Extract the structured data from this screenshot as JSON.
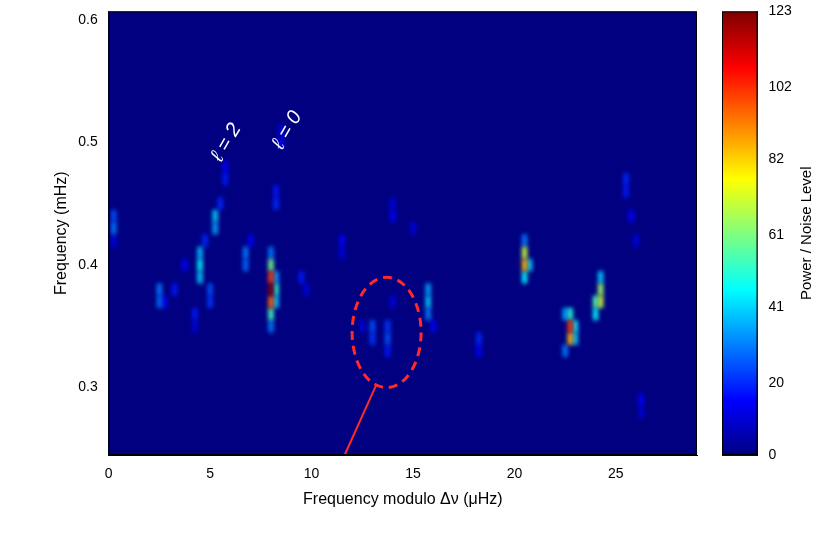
{
  "chart_data": {
    "type": "heatmap",
    "x_label": "Frequency modulo Δν (μHz)",
    "y_label": "Frequency (mHz)",
    "xlim": [
      0,
      29
    ],
    "xticks": [
      0,
      5,
      10,
      15,
      20,
      25
    ],
    "ylim": [
      0.245,
      0.607
    ],
    "yticks": [
      0.3,
      0.4,
      0.5,
      0.6
    ],
    "grid": false,
    "cells": [
      [
        0.25,
        0.42,
        12
      ],
      [
        0.25,
        0.43,
        30
      ],
      [
        0.25,
        0.44,
        25
      ],
      [
        2.5,
        0.37,
        28
      ],
      [
        2.5,
        0.38,
        30
      ],
      [
        2.75,
        0.37,
        15
      ],
      [
        3.25,
        0.38,
        18
      ],
      [
        3.75,
        0.4,
        15
      ],
      [
        4.25,
        0.35,
        12
      ],
      [
        4.25,
        0.36,
        18
      ],
      [
        4.5,
        0.39,
        40
      ],
      [
        4.5,
        0.4,
        45
      ],
      [
        4.5,
        0.41,
        38
      ],
      [
        4.75,
        0.42,
        20
      ],
      [
        5.0,
        0.37,
        22
      ],
      [
        5.0,
        0.38,
        25
      ],
      [
        5.25,
        0.43,
        35
      ],
      [
        5.25,
        0.44,
        40
      ],
      [
        5.5,
        0.45,
        20
      ],
      [
        5.75,
        0.47,
        18
      ],
      [
        5.75,
        0.48,
        15
      ],
      [
        6.75,
        0.4,
        28
      ],
      [
        6.75,
        0.41,
        30
      ],
      [
        7.0,
        0.42,
        15
      ],
      [
        8.0,
        0.35,
        30
      ],
      [
        8.0,
        0.36,
        55
      ],
      [
        8.0,
        0.37,
        95
      ],
      [
        8.0,
        0.38,
        123
      ],
      [
        8.0,
        0.39,
        100
      ],
      [
        8.0,
        0.4,
        60
      ],
      [
        8.0,
        0.41,
        30
      ],
      [
        8.25,
        0.37,
        40
      ],
      [
        8.25,
        0.38,
        50
      ],
      [
        8.25,
        0.39,
        35
      ],
      [
        8.25,
        0.45,
        20
      ],
      [
        8.25,
        0.46,
        18
      ],
      [
        8.5,
        0.5,
        15
      ],
      [
        8.5,
        0.51,
        12
      ],
      [
        9.5,
        0.39,
        18
      ],
      [
        9.75,
        0.38,
        12
      ],
      [
        11.5,
        0.41,
        12
      ],
      [
        11.5,
        0.42,
        15
      ],
      [
        12.5,
        0.35,
        12
      ],
      [
        13.0,
        0.34,
        22
      ],
      [
        13.0,
        0.35,
        25
      ],
      [
        13.75,
        0.33,
        18
      ],
      [
        13.75,
        0.34,
        25
      ],
      [
        13.75,
        0.35,
        22
      ],
      [
        14.0,
        0.37,
        12
      ],
      [
        14.0,
        0.44,
        15
      ],
      [
        14.0,
        0.45,
        12
      ],
      [
        15.0,
        0.43,
        12
      ],
      [
        15.75,
        0.36,
        30
      ],
      [
        15.75,
        0.37,
        40
      ],
      [
        15.75,
        0.38,
        35
      ],
      [
        16.0,
        0.35,
        15
      ],
      [
        18.25,
        0.33,
        15
      ],
      [
        18.25,
        0.34,
        20
      ],
      [
        20.5,
        0.39,
        45
      ],
      [
        20.5,
        0.4,
        85
      ],
      [
        20.5,
        0.41,
        70
      ],
      [
        20.5,
        0.42,
        30
      ],
      [
        20.75,
        0.4,
        40
      ],
      [
        22.5,
        0.33,
        30
      ],
      [
        22.5,
        0.36,
        35
      ],
      [
        22.75,
        0.34,
        85
      ],
      [
        22.75,
        0.35,
        100
      ],
      [
        22.75,
        0.36,
        50
      ],
      [
        23.0,
        0.34,
        40
      ],
      [
        23.0,
        0.35,
        45
      ],
      [
        24.0,
        0.36,
        45
      ],
      [
        24.0,
        0.37,
        55
      ],
      [
        24.25,
        0.37,
        70
      ],
      [
        24.25,
        0.38,
        65
      ],
      [
        24.25,
        0.39,
        40
      ],
      [
        25.5,
        0.46,
        18
      ],
      [
        25.5,
        0.47,
        20
      ],
      [
        25.75,
        0.44,
        15
      ],
      [
        26.0,
        0.42,
        12
      ],
      [
        26.25,
        0.28,
        10
      ],
      [
        26.25,
        0.29,
        15
      ]
    ],
    "colorbar": {
      "label": "Power / Noise Level",
      "range": [
        0,
        123
      ],
      "ticks": [
        0,
        20,
        41,
        61,
        82,
        102,
        123
      ]
    },
    "annotations": [
      {
        "text": "ℓ = 2",
        "x": 5.8,
        "y": 0.5,
        "color": "#ffffff"
      },
      {
        "text": "ℓ = 0",
        "x": 8.8,
        "y": 0.51,
        "color": "#ffffff"
      },
      {
        "shape": "ellipse",
        "x": [
          12.0,
          15.4
        ],
        "y": [
          0.3,
          0.39
        ],
        "color": "#ff2a2a",
        "line_style": "dashed"
      }
    ]
  }
}
